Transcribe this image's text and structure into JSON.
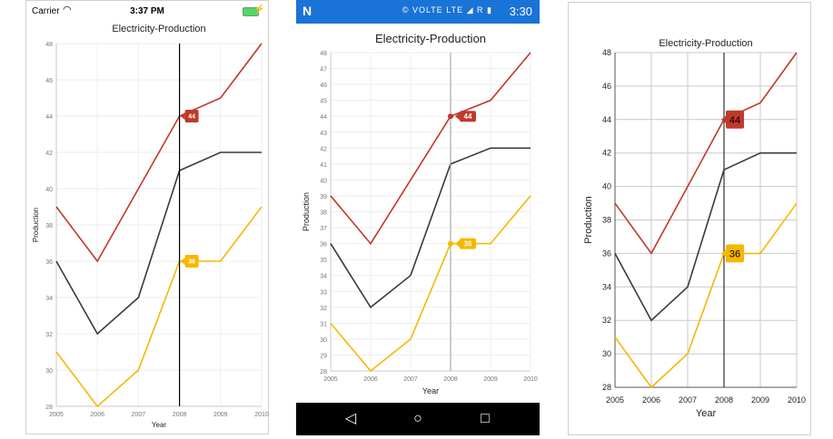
{
  "ios": {
    "carrier": "Carrier",
    "time": "3:37 PM",
    "wifi_icon": "wifi-icon",
    "battery_icon": "battery-icon",
    "battery_color": "#4cd964"
  },
  "android": {
    "logo": "N",
    "status_icons": "© VOLTE LTE ◢ R ▮",
    "time": "3:30",
    "bar_color": "#1a73d6",
    "nav": {
      "back": "◁",
      "home": "○",
      "recent": "□"
    }
  },
  "colors": {
    "series1": "#c0392b",
    "series2": "#3b3b30",
    "series3": "#f5b800"
  },
  "chart_data": [
    {
      "type": "line",
      "title": "Electricity-Production",
      "xlabel": "Year",
      "ylabel": "Production",
      "x": [
        "2005",
        "2006",
        "2007",
        "2008",
        "2009",
        "2010"
      ],
      "series": [
        {
          "values": [
            39,
            36,
            40,
            44,
            45,
            48
          ]
        },
        {
          "values": [
            36,
            32,
            34,
            41,
            42,
            42
          ]
        },
        {
          "values": [
            31,
            28,
            30,
            36,
            36,
            39
          ]
        }
      ],
      "ylim": [
        28,
        48
      ],
      "yticks": [
        "28",
        "30",
        "32",
        "34",
        "36",
        "38",
        "40",
        "42",
        "44",
        "46",
        "48"
      ],
      "trackball": {
        "x": "2008",
        "labels": [
          "44",
          "36"
        ]
      },
      "grid": true
    },
    {
      "type": "line",
      "title": "Electricity-Production",
      "xlabel": "Year",
      "ylabel": "Production",
      "x": [
        "2005",
        "2006",
        "2007",
        "2008",
        "2009",
        "2010"
      ],
      "series": [
        {
          "values": [
            39,
            36,
            40,
            44,
            45,
            48
          ]
        },
        {
          "values": [
            36,
            32,
            34,
            41,
            42,
            42
          ]
        },
        {
          "values": [
            31,
            28,
            30,
            36,
            36,
            39
          ]
        }
      ],
      "ylim": [
        28,
        48
      ],
      "yticks": [
        "28",
        "29",
        "30",
        "31",
        "32",
        "33",
        "34",
        "35",
        "36",
        "37",
        "38",
        "39",
        "40",
        "41",
        "42",
        "43",
        "44",
        "45",
        "46",
        "47",
        "48"
      ],
      "trackball": {
        "x": "2008",
        "labels": [
          "44",
          "36"
        ]
      },
      "grid": true
    },
    {
      "type": "line",
      "title": "Electricity-Production",
      "xlabel": "Year",
      "ylabel": "Production",
      "x": [
        "2005",
        "2006",
        "2007",
        "2008",
        "2009",
        "2010"
      ],
      "series": [
        {
          "values": [
            39,
            36,
            40,
            44,
            45,
            48
          ]
        },
        {
          "values": [
            36,
            32,
            34,
            41,
            42,
            42
          ]
        },
        {
          "values": [
            31,
            28,
            30,
            36,
            36,
            39
          ]
        }
      ],
      "ylim": [
        28,
        48
      ],
      "yticks": [
        "28",
        "30",
        "32",
        "34",
        "36",
        "38",
        "40",
        "42",
        "44",
        "46",
        "48"
      ],
      "trackball": {
        "x": "2008",
        "labels": [
          "44",
          "36"
        ]
      },
      "grid": true
    }
  ]
}
